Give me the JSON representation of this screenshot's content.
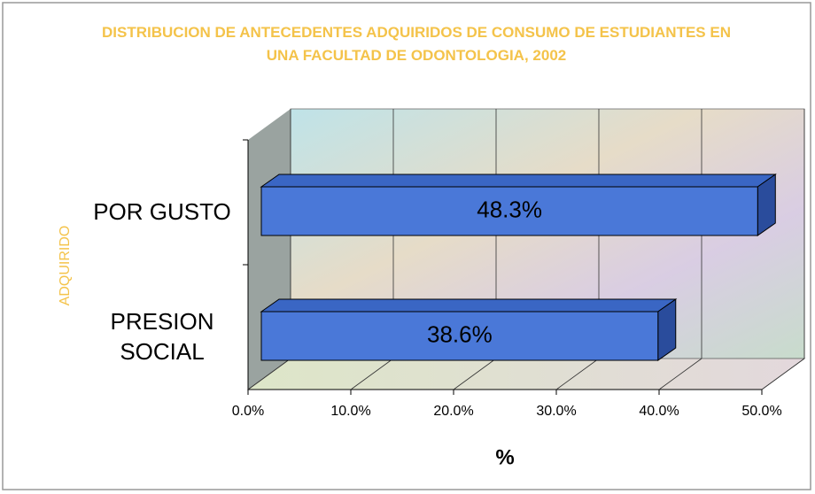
{
  "chart_data": {
    "type": "bar",
    "title": "DISTRIBUCION DE ANTECEDENTES ADQUIRIDOS DE CONSUMO DE ESTUDIANTES EN UNA FACULTAD DE ODONTOLOGIA, 2002",
    "categories": [
      "POR GUSTO",
      "PRESION SOCIAL"
    ],
    "values": [
      48.3,
      38.6
    ],
    "value_labels": [
      "48.3%",
      "38.6%"
    ],
    "color": "#4a78d8",
    "xlabel": "%",
    "ylabel": "ADQUIRIDO",
    "xlim": [
      0,
      50
    ],
    "xticks": [
      {
        "value": 0,
        "label": "0.0%"
      },
      {
        "value": 10,
        "label": "10.0%"
      },
      {
        "value": 20,
        "label": "20.0%"
      },
      {
        "value": 30,
        "label": "30.0%"
      },
      {
        "value": 40,
        "label": "40.0%"
      },
      {
        "value": 50,
        "label": "50.0%"
      }
    ],
    "grid": true
  }
}
